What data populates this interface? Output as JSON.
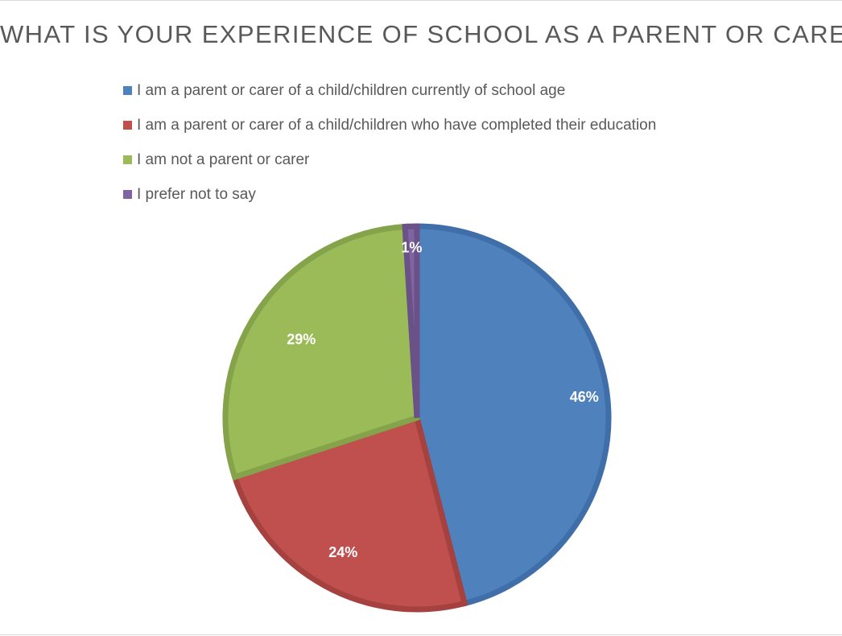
{
  "chart_data": {
    "type": "pie",
    "title": "WHAT IS YOUR EXPERIENCE OF SCHOOL AS A PARENT OR CARER?",
    "legend_position": "top-left",
    "series": [
      {
        "name": "I am a parent or carer of a child/children currently of school age",
        "value": 46,
        "label": "46%",
        "color": "#4f81bd",
        "edge_color": "#3f6ea8"
      },
      {
        "name": "I am a parent or carer of a child/children who have completed their education",
        "value": 24,
        "label": "24%",
        "color": "#c0504d",
        "edge_color": "#a54240"
      },
      {
        "name": "I am not a parent or carer",
        "value": 29,
        "label": "29%",
        "color": "#9bbb59",
        "edge_color": "#84a34a"
      },
      {
        "name": "I prefer not to say",
        "value": 1,
        "label": "1%",
        "color": "#8064a2",
        "edge_color": "#6a5289"
      }
    ]
  }
}
